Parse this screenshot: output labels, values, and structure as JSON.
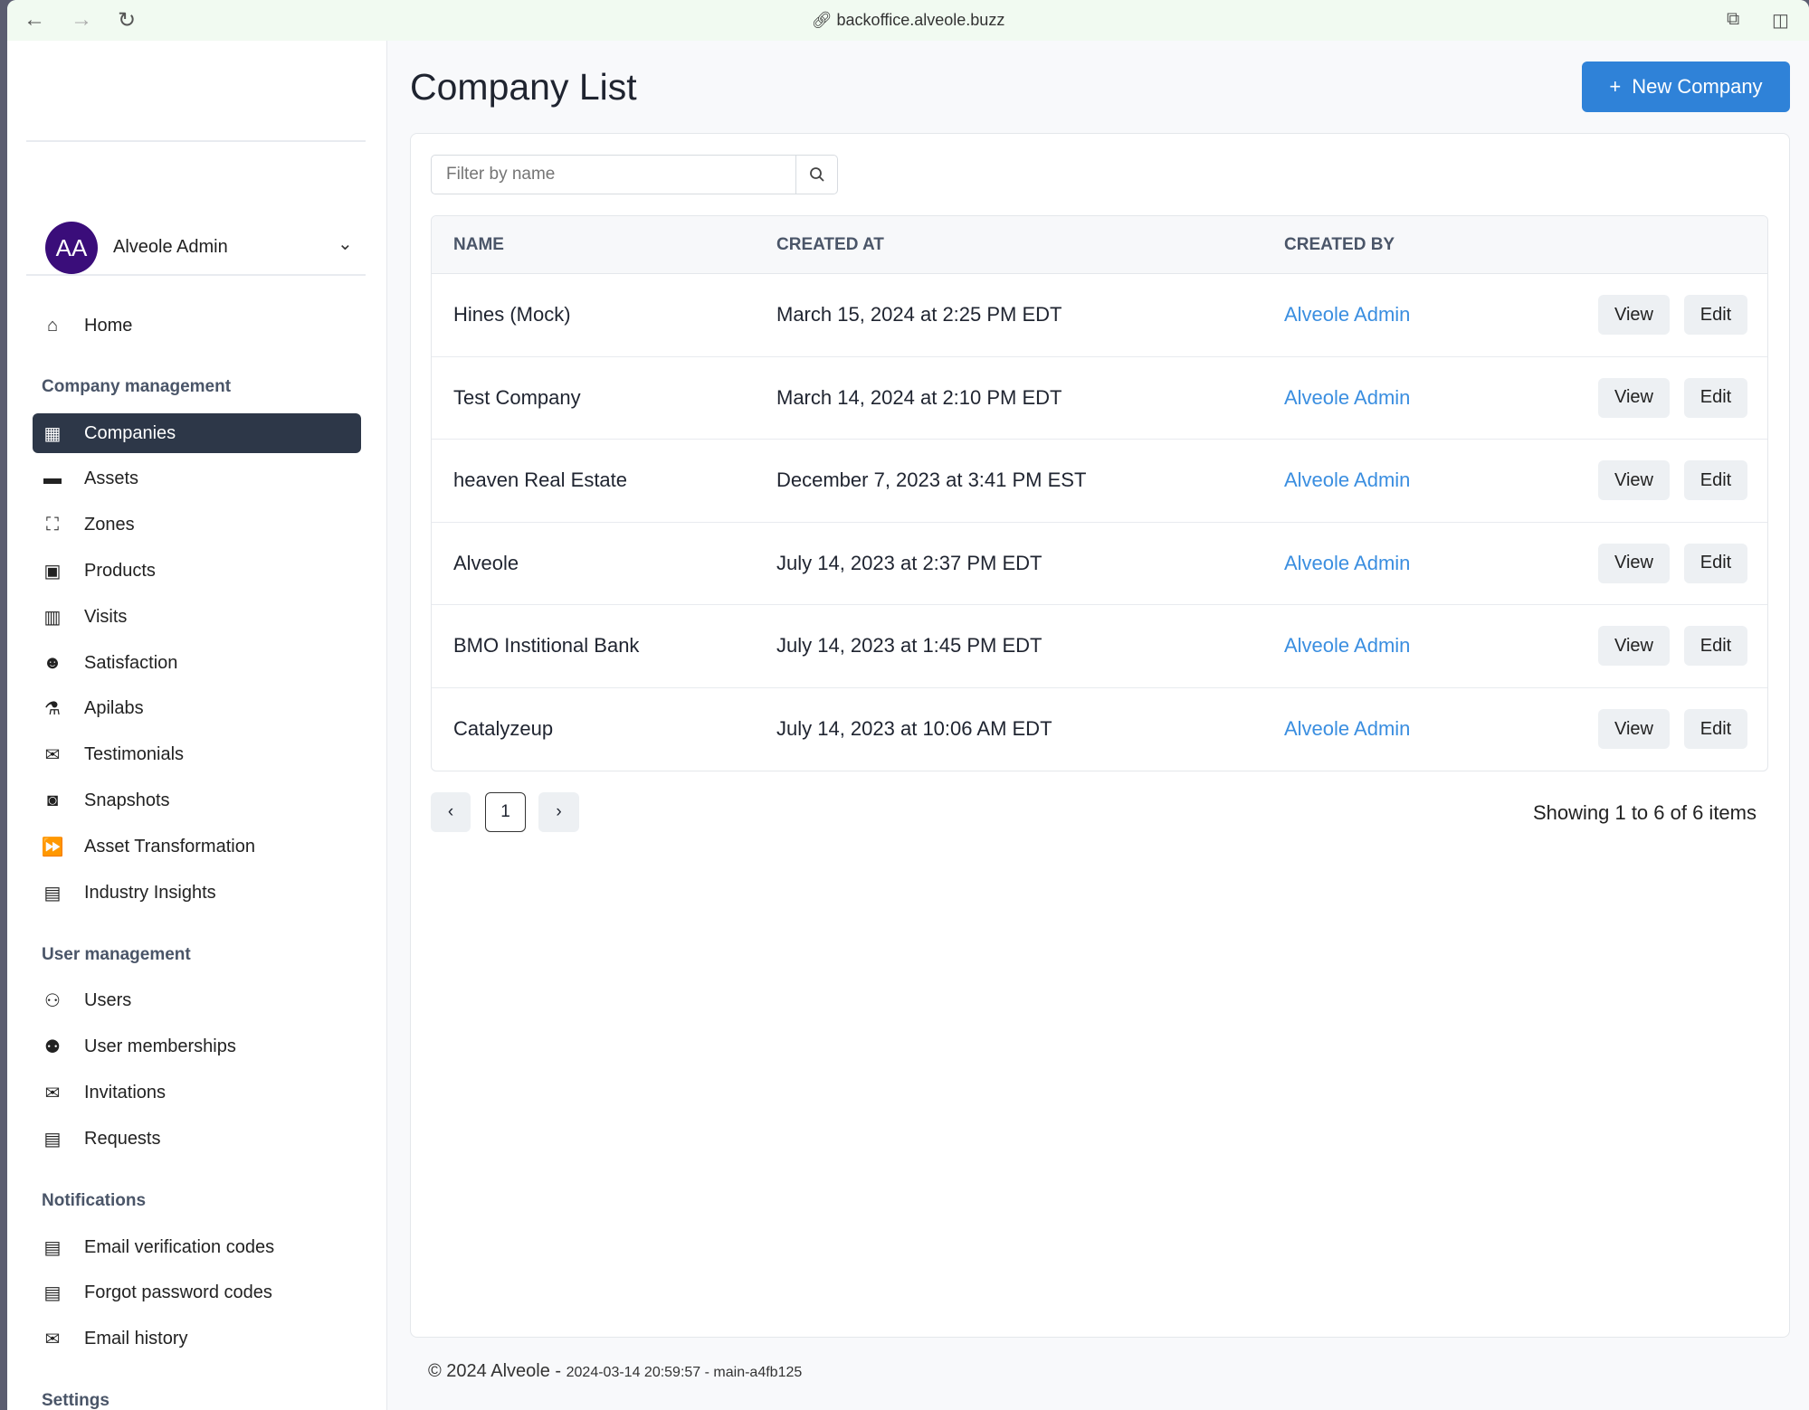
{
  "browser": {
    "url": "backoffice.alveole.buzz"
  },
  "user": {
    "initials": "AA",
    "name": "Alveole Admin",
    "avatar_color": "#3a0d7a"
  },
  "sidebar": {
    "home": {
      "label": "Home",
      "icon": "home-icon"
    },
    "sections": [
      {
        "title": "Company management",
        "items": [
          {
            "label": "Companies",
            "icon": "building-icon",
            "active": true
          },
          {
            "label": "Assets",
            "icon": "money-bill-icon"
          },
          {
            "label": "Zones",
            "icon": "vector-square-icon"
          },
          {
            "label": "Products",
            "icon": "box-icon"
          },
          {
            "label": "Visits",
            "icon": "bar-chart-icon"
          },
          {
            "label": "Satisfaction",
            "icon": "smile-icon"
          },
          {
            "label": "Apilabs",
            "icon": "flask-icon"
          },
          {
            "label": "Testimonials",
            "icon": "comments-icon"
          },
          {
            "label": "Snapshots",
            "icon": "camera-icon"
          },
          {
            "label": "Asset Transformation",
            "icon": "fast-forward-icon"
          },
          {
            "label": "Industry Insights",
            "icon": "newspaper-icon"
          }
        ]
      },
      {
        "title": "User management",
        "items": [
          {
            "label": "Users",
            "icon": "users-icon"
          },
          {
            "label": "User memberships",
            "icon": "user-lock-icon"
          },
          {
            "label": "Invitations",
            "icon": "envelope-icon"
          },
          {
            "label": "Requests",
            "icon": "receipt-icon"
          }
        ]
      },
      {
        "title": "Notifications",
        "items": [
          {
            "label": "Email verification codes",
            "icon": "receipt-icon"
          },
          {
            "label": "Forgot password codes",
            "icon": "receipt-icon"
          },
          {
            "label": "Email history",
            "icon": "mail-bulk-icon"
          }
        ]
      },
      {
        "title": "Settings",
        "items": []
      }
    ]
  },
  "page": {
    "title": "Company List",
    "new_button": "New Company",
    "accent": "#2f82d8"
  },
  "filter": {
    "placeholder": "Filter by name",
    "value": ""
  },
  "table": {
    "headers": [
      "NAME",
      "CREATED AT",
      "CREATED BY"
    ],
    "rows": [
      {
        "name": "Hines (Mock)",
        "created_at": "March 15, 2024 at 2:25 PM EDT",
        "created_by": "Alveole Admin"
      },
      {
        "name": "Test Company",
        "created_at": "March 14, 2024 at 2:10 PM EDT",
        "created_by": "Alveole Admin"
      },
      {
        "name": "heaven Real Estate",
        "created_at": "December 7, 2023 at 3:41 PM EST",
        "created_by": "Alveole Admin"
      },
      {
        "name": "Alveole",
        "created_at": "July 14, 2023 at 2:37 PM EDT",
        "created_by": "Alveole Admin"
      },
      {
        "name": "BMO Institional Bank",
        "created_at": "July 14, 2023 at 1:45 PM EDT",
        "created_by": "Alveole Admin"
      },
      {
        "name": "Catalyzeup",
        "created_at": "July 14, 2023 at 10:06 AM EDT",
        "created_by": "Alveole Admin"
      }
    ],
    "view_label": "View",
    "edit_label": "Edit"
  },
  "pagination": {
    "current_page": "1",
    "summary": "Showing 1 to 6 of 6 items"
  },
  "footer": {
    "copyright": "© 2024 Alveole -",
    "build": "2024-03-14 20:59:57 - main-a4fb125"
  }
}
